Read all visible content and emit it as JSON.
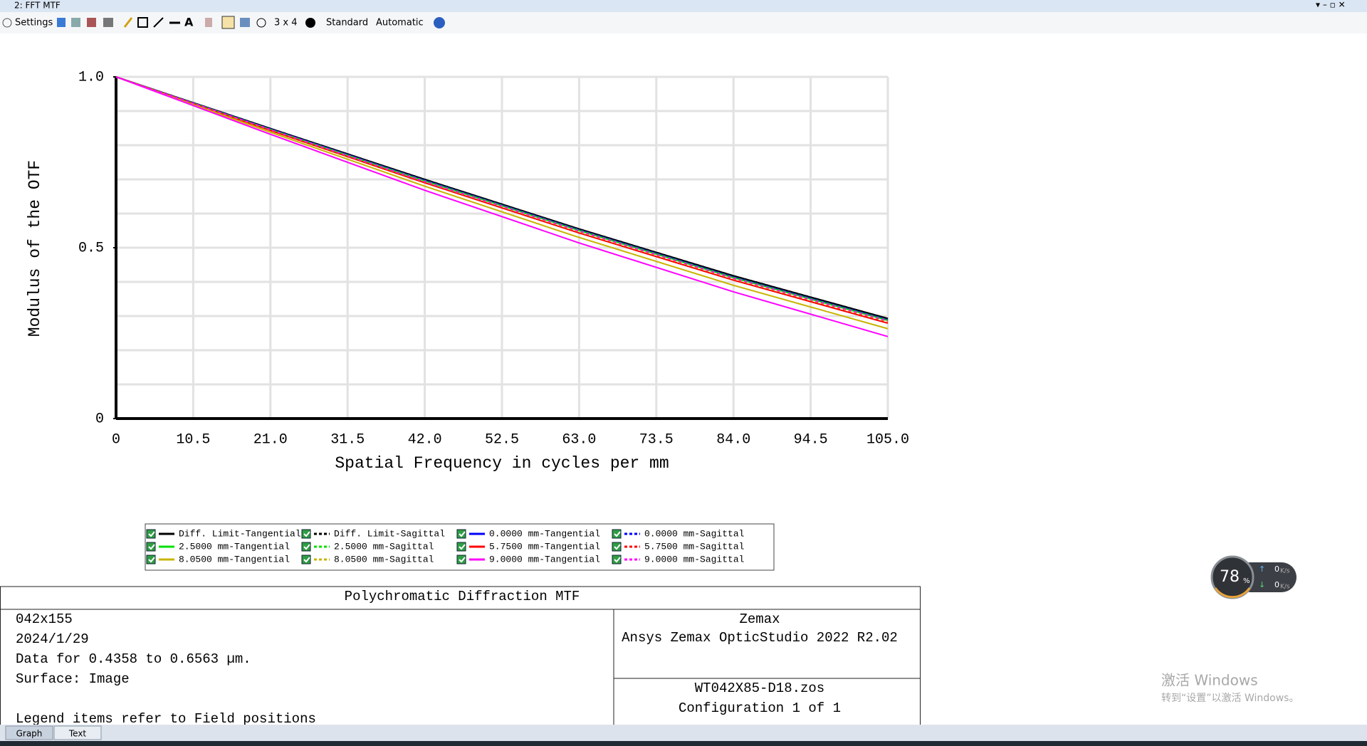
{
  "window": {
    "title": "2: FFT MTF"
  },
  "toolbar": {
    "settings": "Settings",
    "layout": "3 x 4",
    "mode": "Standard",
    "scale": "Automatic"
  },
  "chart_data": {
    "type": "line",
    "y_label": "Modulus of the OTF",
    "x_label": "Spatial Frequency in cycles per mm",
    "x": [
      0,
      21,
      42,
      63,
      84,
      105
    ],
    "xlim": [
      0,
      105
    ],
    "xticks": [
      0,
      10.5,
      {
        "value": 21,
        "label": "21.0"
      },
      31.5,
      {
        "value": 42,
        "label": "42.0"
      },
      52.5,
      {
        "value": 63,
        "label": "63.0"
      },
      73.5,
      {
        "value": 84,
        "label": "84.0"
      },
      94.5,
      {
        "value": 105,
        "label": "105.0"
      }
    ],
    "ylim": [
      0,
      1
    ],
    "yticks": [
      0,
      0.5,
      {
        "value": 1,
        "label": "1.0"
      }
    ],
    "ygrid": [
      0.1,
      0.2,
      0.3,
      0.4,
      0.5,
      0.6,
      0.7,
      0.8,
      0.9,
      1
    ],
    "grid": true,
    "series": [
      {
        "name": "Diff. Limit-Tangential",
        "color": "#000000",
        "dash": false,
        "values": [
          1,
          0.849,
          0.7,
          0.555,
          0.418,
          0.293
        ]
      },
      {
        "name": "Diff. Limit-Sagittal",
        "color": "#000000",
        "dash": true,
        "values": [
          1,
          0.849,
          0.7,
          0.555,
          0.418,
          0.293
        ]
      },
      {
        "name": "0.0000 mm-Tangential",
        "color": "#0000ff",
        "dash": false,
        "values": [
          1,
          0.847,
          0.697,
          0.552,
          0.414,
          0.289
        ]
      },
      {
        "name": "0.0000 mm-Sagittal",
        "color": "#0000ff",
        "dash": true,
        "values": [
          1,
          0.847,
          0.697,
          0.552,
          0.414,
          0.289
        ]
      },
      {
        "name": "2.5000 mm-Tangential",
        "color": "#00e000",
        "dash": false,
        "values": [
          1,
          0.846,
          0.695,
          0.55,
          0.412,
          0.287
        ]
      },
      {
        "name": "2.5000 mm-Sagittal",
        "color": "#00e000",
        "dash": true,
        "values": [
          1,
          0.846,
          0.696,
          0.551,
          0.413,
          0.288
        ]
      },
      {
        "name": "5.7500 mm-Tangential",
        "color": "#ff0000",
        "dash": false,
        "values": [
          1,
          0.843,
          0.69,
          0.543,
          0.405,
          0.279
        ]
      },
      {
        "name": "5.7500 mm-Sagittal",
        "color": "#ff0000",
        "dash": true,
        "values": [
          1,
          0.844,
          0.692,
          0.546,
          0.408,
          0.283
        ]
      },
      {
        "name": "8.0500 mm-Tangential",
        "color": "#c8b400",
        "dash": false,
        "values": [
          1,
          0.838,
          0.68,
          0.53,
          0.39,
          0.263
        ]
      },
      {
        "name": "8.0500 mm-Sagittal",
        "color": "#c8b400",
        "dash": true,
        "values": [
          1,
          0.845,
          0.693,
          0.547,
          0.409,
          0.284
        ]
      },
      {
        "name": "9.0000 mm-Tangential",
        "color": "#ff00ff",
        "dash": false,
        "values": [
          1,
          0.832,
          0.668,
          0.514,
          0.371,
          0.24
        ]
      },
      {
        "name": "9.0000 mm-Sagittal",
        "color": "#ff00ff",
        "dash": true,
        "values": [
          1,
          0.846,
          0.694,
          0.549,
          0.411,
          0.286
        ]
      }
    ]
  },
  "info_box": {
    "title": "Polychromatic Diffraction MTF",
    "left": [
      "042x155",
      "2024/1/29",
      "Data for 0.4358 to 0.6563 µm.",
      "Surface: Image",
      "Legend items refer to Field positions"
    ],
    "right_top": [
      "Zemax",
      "Ansys Zemax OpticStudio 2022 R2.02"
    ],
    "right_bottom": [
      "WT042X85-D18.zos",
      "Configuration 1 of 1"
    ]
  },
  "tabs": [
    "Graph",
    "Text"
  ],
  "net_widget": {
    "percent": "78",
    "percent_sign": "%",
    "up": "0",
    "down": "0",
    "unit": "K/s"
  },
  "watermark": [
    "激活 Windows",
    "转到“设置”以激活 Windows。"
  ]
}
